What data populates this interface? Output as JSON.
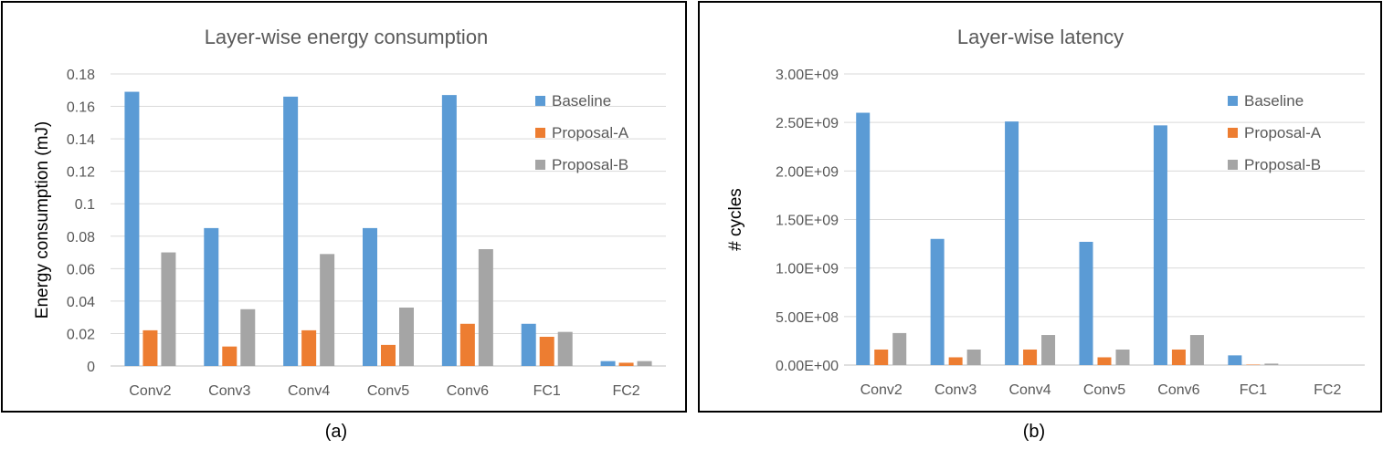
{
  "figures": {
    "a": {
      "caption": "(a)"
    },
    "b": {
      "caption": "(b)"
    }
  },
  "colors": {
    "Baseline": "#5b9bd5",
    "Proposal-A": "#ed7d31",
    "Proposal-B": "#a5a5a5",
    "grid": "#d9d9d9",
    "text": "#595959"
  },
  "chart_data": [
    {
      "type": "bar",
      "title": "Layer-wise energy consumption",
      "xlabel": "",
      "ylabel": "Energy consumption (mJ)",
      "ylim": [
        0,
        0.18
      ],
      "yticks": [
        0,
        0.02,
        0.04,
        0.06,
        0.08,
        0.1,
        0.12,
        0.14,
        0.16,
        0.18
      ],
      "ytick_labels": [
        "0",
        "0.02",
        "0.04",
        "0.06",
        "0.08",
        "0.1",
        "0.12",
        "0.14",
        "0.16",
        "0.18"
      ],
      "categories": [
        "Conv2",
        "Conv3",
        "Conv4",
        "Conv5",
        "Conv6",
        "FC1",
        "FC2"
      ],
      "legend_position": "top-right",
      "series": [
        {
          "name": "Baseline",
          "values": [
            0.169,
            0.085,
            0.166,
            0.085,
            0.167,
            0.026,
            0.003
          ]
        },
        {
          "name": "Proposal-A",
          "values": [
            0.022,
            0.012,
            0.022,
            0.013,
            0.026,
            0.018,
            0.002
          ]
        },
        {
          "name": "Proposal-B",
          "values": [
            0.07,
            0.035,
            0.069,
            0.036,
            0.072,
            0.021,
            0.003
          ]
        }
      ]
    },
    {
      "type": "bar",
      "title": "Layer-wise latency",
      "xlabel": "",
      "ylabel": "# cycles",
      "ylim": [
        0,
        3000000000
      ],
      "yticks": [
        0,
        500000000,
        1000000000,
        1500000000,
        2000000000,
        2500000000,
        3000000000
      ],
      "ytick_labels": [
        "0.00E+00",
        "5.00E+08",
        "1.00E+09",
        "1.50E+09",
        "2.00E+09",
        "2.50E+09",
        "3.00E+09"
      ],
      "categories": [
        "Conv2",
        "Conv3",
        "Conv4",
        "Conv5",
        "Conv6",
        "FC1",
        "FC2"
      ],
      "legend_position": "top-right",
      "series": [
        {
          "name": "Baseline",
          "values": [
            2600000000,
            1300000000,
            2510000000,
            1270000000,
            2470000000,
            100000000,
            0
          ]
        },
        {
          "name": "Proposal-A",
          "values": [
            160000000,
            80000000,
            160000000,
            80000000,
            160000000,
            5000000,
            0
          ]
        },
        {
          "name": "Proposal-B",
          "values": [
            330000000,
            160000000,
            310000000,
            160000000,
            310000000,
            15000000,
            0
          ]
        }
      ]
    }
  ]
}
